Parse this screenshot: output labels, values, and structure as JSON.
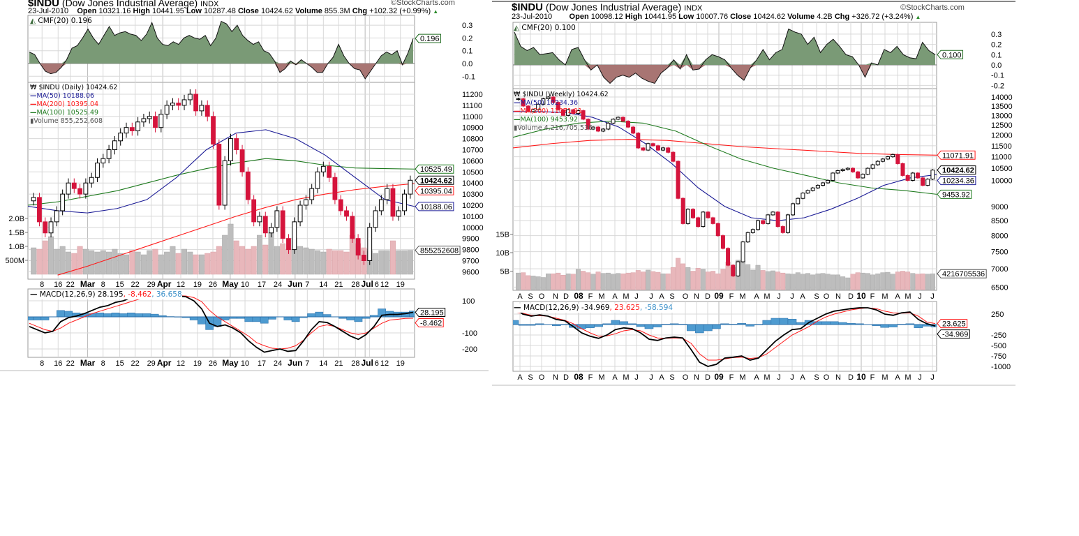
{
  "copyright": "©StockCharts.com",
  "colors": {
    "cmf_pos": "#7a9a76",
    "cmf_neg": "#a87573",
    "up_candle": "#ffffff",
    "down_candle": "#d5143c",
    "volume_up": "#bdbdbd",
    "volume_down": "#e8b7bb",
    "ma50": "#1c1c96",
    "ma200": "#ff1a1a",
    "ma100": "#1e7a1e",
    "macd": "#000000",
    "signal": "#ff1a1a",
    "histogram": "#4e9bd0",
    "grid": "#d8d8d8"
  },
  "charts": [
    {
      "symbol": "$INDU",
      "name": "(Dow Jones Industrial Average)",
      "exchange": "INDX",
      "date": "23-Jul-2010",
      "open_label": "Open",
      "open": "10321.16",
      "high_label": "High",
      "high": "10441.95",
      "low_label": "Low",
      "low": "10287.48",
      "close_label": "Close",
      "close": "10424.62",
      "volume_label": "Volume",
      "volume": "855.3M",
      "chg_label": "Chg",
      "chg": "+102.32 (+0.99%)",
      "cmf_legend": "CMF(20) 0.196",
      "cmf_tag": "0.196",
      "price_legend": "$INDU (Daily) 10424.62",
      "ma50_legend": "MA(50) 10188.06",
      "ma200_legend": "MA(200) 10395.04",
      "ma100_legend": "MA(100) 10525.49",
      "volume_legend": "Volume 855,252,608",
      "macd_legend": "MACD(12,26,9) 28.195",
      "signal_legend": ", -8.462",
      "hist_legend": ", 36.658",
      "tags": {
        "close": "10424.62",
        "ma50": "10188.06",
        "ma200": "10395.04",
        "ma100": "10525.49",
        "volume": "855252608",
        "macd": "28.195",
        "signal": "-8.462"
      },
      "cmf_ticks": [
        "0.3",
        "0.2",
        "0.1",
        "0.0",
        "-0.1"
      ],
      "price_ticks": [
        "11200",
        "11100",
        "11000",
        "10900",
        "10800",
        "10700",
        "10600",
        "10500",
        "10400",
        "10300",
        "10200",
        "10100",
        "10000",
        "9900",
        "9800",
        "9700",
        "9600"
      ],
      "volume_ticks": [
        "2.0B",
        "1.5B",
        "1.0B",
        "500M"
      ],
      "macd_ticks": [
        "100",
        "-100",
        "-200"
      ],
      "x_ticks": [
        [
          "8",
          0
        ],
        [
          "16",
          0
        ],
        [
          "22",
          0
        ],
        [
          "Mar",
          1
        ],
        [
          "8",
          0
        ],
        [
          "15",
          0
        ],
        [
          "22",
          0
        ],
        [
          "29",
          0
        ],
        [
          "Apr",
          1
        ],
        [
          "12",
          0
        ],
        [
          "19",
          0
        ],
        [
          "26",
          0
        ],
        [
          "May",
          1
        ],
        [
          "10",
          0
        ],
        [
          "17",
          0
        ],
        [
          "24",
          0
        ],
        [
          "Jun",
          1
        ],
        [
          "7",
          0
        ],
        [
          "14",
          0
        ],
        [
          "21",
          0
        ],
        [
          "28",
          0
        ],
        [
          "Jul",
          1
        ],
        [
          "6",
          0
        ],
        [
          "12",
          0
        ],
        [
          "19",
          0
        ]
      ],
      "closes": [
        10270,
        10050,
        9950,
        10050,
        10150,
        10300,
        10400,
        10350,
        10300,
        10400,
        10450,
        10580,
        10620,
        10700,
        10780,
        10850,
        10900,
        10870,
        10950,
        10980,
        11000,
        10900,
        11020,
        11100,
        11120,
        11100,
        11150,
        11200,
        11050,
        11100,
        11000,
        10750,
        10200,
        10600,
        10800,
        10700,
        10500,
        10250,
        10050,
        10100,
        9950,
        10000,
        10150,
        9900,
        9800,
        10050,
        10200,
        10250,
        10350,
        10500,
        10550,
        10450,
        10250,
        10150,
        10100,
        9900,
        9750,
        9700,
        10000,
        10150,
        10250,
        10350,
        10100,
        10150,
        10300,
        10424.62
      ],
      "volumes_billions": [
        0.95,
        0.9,
        1.2,
        1.35,
        0.9,
        1.0,
        0.8,
        0.75,
        1.0,
        0.9,
        0.85,
        0.8,
        0.85,
        0.8,
        0.9,
        0.75,
        0.7,
        0.85,
        0.8,
        0.7,
        0.85,
        0.9,
        0.7,
        0.8,
        1.0,
        0.75,
        0.9,
        0.8,
        0.7,
        0.7,
        0.75,
        0.8,
        1.0,
        1.4,
        1.8,
        1.2,
        1.0,
        0.9,
        1.0,
        1.4,
        1.05,
        1.5,
        1.0,
        1.1,
        0.9,
        1.3,
        1.0,
        0.95,
        0.9,
        0.85,
        0.8,
        0.9,
        0.85,
        0.85,
        0.8,
        1.4,
        1.1,
        0.95,
        0.85,
        0.75,
        0.85,
        0.85,
        1.2,
        0.85,
        0.85,
        0.86
      ],
      "ma50": [
        10190,
        10150,
        10130,
        10170,
        10250,
        10450,
        10700,
        10850,
        10880,
        10800,
        10650,
        10450,
        10250,
        10188.06
      ],
      "ma100": [
        10200,
        10230,
        10280,
        10330,
        10400,
        10470,
        10530,
        10580,
        10620,
        10600,
        10560,
        10535,
        10530,
        10525.49
      ],
      "ma200": [
        null,
        9570,
        9650,
        9740,
        9830,
        9920,
        10010,
        10100,
        10180,
        10250,
        10300,
        10340,
        10370,
        10395.04
      ],
      "cmf": [
        0.09,
        0.07,
        0.0,
        -0.06,
        -0.08,
        -0.07,
        -0.03,
        0.03,
        0.12,
        0.14,
        0.2,
        0.27,
        0.2,
        0.15,
        0.22,
        0.29,
        0.22,
        0.24,
        0.25,
        0.23,
        0.22,
        0.18,
        0.23,
        0.32,
        0.2,
        0.15,
        0.14,
        0.17,
        0.15,
        0.2,
        0.22,
        0.2,
        0.19,
        0.22,
        0.14,
        0.2,
        0.33,
        0.31,
        0.25,
        0.3,
        0.22,
        0.18,
        0.15,
        0.17,
        0.1,
        0.08,
        0.02,
        -0.07,
        -0.04,
        0.02,
        -0.01,
        0.03,
        0.0,
        -0.03,
        -0.07,
        -0.07,
        0.0,
        0.05,
        0.15,
        0.06,
        0.0,
        -0.04,
        -0.05,
        -0.12,
        -0.06,
        0.0,
        0.06,
        0.09,
        0.07,
        0.1,
        -0.01,
        0.08,
        0.196
      ],
      "macd": [
        -60,
        -80,
        -100,
        -90,
        -30,
        -5,
        5,
        20,
        40,
        60,
        70,
        90,
        100,
        120,
        130,
        140,
        145,
        140,
        135,
        130,
        125,
        100,
        50,
        -40,
        -60,
        -50,
        -70,
        -100,
        -150,
        -190,
        -220,
        -210,
        -200,
        -215,
        -210,
        -150,
        -80,
        -30,
        -35,
        -60,
        -90,
        -120,
        -140,
        -110,
        -60,
        10,
        15,
        15,
        20,
        28.195
      ],
      "signal": [
        -40,
        -60,
        -80,
        -90,
        -70,
        -40,
        -20,
        0,
        20,
        35,
        50,
        65,
        80,
        95,
        110,
        120,
        128,
        132,
        133,
        132,
        130,
        120,
        95,
        40,
        0,
        -30,
        -60,
        -90,
        -120,
        -160,
        -180,
        -195,
        -200,
        -195,
        -180,
        -145,
        -100,
        -60,
        -50,
        -60,
        -80,
        -100,
        -110,
        -100,
        -70,
        -40,
        -20,
        -15,
        -10,
        -8.462
      ],
      "scale": "linear"
    },
    {
      "symbol": "$INDU",
      "name": "(Dow Jones Industrial Average)",
      "exchange": "INDX",
      "date": "23-Jul-2010",
      "open_label": "Open",
      "open": "10098.12",
      "high_label": "High",
      "high": "10441.95",
      "low_label": "Low",
      "low": "10007.76",
      "close_label": "Close",
      "close": "10424.62",
      "volume_label": "Volume",
      "volume": "4.2B",
      "chg_label": "Chg",
      "chg": "+326.72 (+3.24%)",
      "cmf_legend": "CMF(20) 0.100",
      "cmf_tag": "0.100",
      "price_legend": "$INDU (Weekly) 10424.62",
      "ma50_legend": "MA(50) 10234.36",
      "ma200_legend": "MA(200) 11071.91",
      "ma100_legend": "MA(100) 9453.92",
      "volume_legend": "Volume 4,216,705,536",
      "macd_legend": "MACD(12,26,9) -34.969",
      "signal_legend": ", 23.625",
      "hist_legend": ", -58.594",
      "tags": {
        "close": "10424.62",
        "ma50": "10234.36",
        "ma200": "11071.91",
        "ma100": "9453.92",
        "volume": "4216705536",
        "macd": "-34.969",
        "signal": "23.625"
      },
      "cmf_ticks": [
        "0.3",
        "0.2",
        "0.1",
        "0.0",
        "-0.1",
        "-0.2"
      ],
      "price_ticks": [
        "14000",
        "13500",
        "13000",
        "12500",
        "12000",
        "11500",
        "11000",
        "10500",
        "10000",
        "9000",
        "8500",
        "8000",
        "7500",
        "7000",
        "6500"
      ],
      "volume_ticks": [
        "15B",
        "10B",
        "5B"
      ],
      "macd_ticks": [
        "250",
        "-250",
        "-500",
        "-750",
        "-1000"
      ],
      "x_ticks": [
        [
          "A",
          0
        ],
        [
          "S",
          0
        ],
        [
          "O",
          0
        ],
        [
          "N",
          0
        ],
        [
          "D",
          0
        ],
        [
          "08",
          1
        ],
        [
          "F",
          0
        ],
        [
          "M",
          0
        ],
        [
          "A",
          0
        ],
        [
          "M",
          0
        ],
        [
          "J",
          0
        ],
        [
          "J",
          0
        ],
        [
          "A",
          0
        ],
        [
          "S",
          0
        ],
        [
          "O",
          0
        ],
        [
          "N",
          0
        ],
        [
          "D",
          0
        ],
        [
          "09",
          1
        ],
        [
          "F",
          0
        ],
        [
          "M",
          0
        ],
        [
          "A",
          0
        ],
        [
          "M",
          0
        ],
        [
          "J",
          0
        ],
        [
          "J",
          0
        ],
        [
          "A",
          0
        ],
        [
          "S",
          0
        ],
        [
          "O",
          0
        ],
        [
          "N",
          0
        ],
        [
          "D",
          0
        ],
        [
          "10",
          1
        ],
        [
          "F",
          0
        ],
        [
          "M",
          0
        ],
        [
          "A",
          0
        ],
        [
          "M",
          0
        ],
        [
          "J",
          0
        ],
        [
          "J",
          0
        ]
      ],
      "closes": [
        13900,
        13500,
        13200,
        13300,
        13600,
        13900,
        14000,
        13700,
        13300,
        13000,
        13300,
        13100,
        13250,
        12800,
        12300,
        12400,
        12200,
        12300,
        12600,
        12800,
        12900,
        12700,
        12400,
        12100,
        11400,
        11300,
        11600,
        11500,
        11300,
        11400,
        11200,
        10800,
        9300,
        8400,
        8900,
        8600,
        8300,
        8800,
        8600,
        8400,
        8000,
        7600,
        7100,
        6800,
        7200,
        7800,
        8100,
        8200,
        8500,
        8400,
        8700,
        8800,
        8300,
        8100,
        8700,
        9100,
        9300,
        9500,
        9600,
        9700,
        9800,
        9900,
        10000,
        10300,
        10400,
        10450,
        10500,
        10350,
        10100,
        10250,
        10500,
        10650,
        10800,
        10900,
        11000,
        11100,
        10700,
        10200,
        10000,
        10300,
        10100,
        9800,
        10050,
        10424.62
      ],
      "volumes_billions": [
        4.5,
        4.6,
        3.8,
        3.7,
        3.5,
        3.3,
        4.3,
        4.3,
        4.5,
        3.9,
        4.3,
        4.2,
        5.5,
        5.0,
        4.6,
        4.2,
        4.8,
        4.4,
        4.5,
        4.2,
        4.4,
        4.3,
        4.5,
        4.6,
        5.2,
        4.8,
        5.3,
        4.9,
        4.7,
        4.3,
        4.3,
        6.0,
        8.5,
        7.0,
        6.0,
        5.0,
        5.8,
        5.5,
        4.8,
        5.0,
        4.3,
        5.5,
        7.5,
        6.0,
        8.0,
        7.8,
        6.8,
        5.3,
        6.6,
        5.2,
        4.9,
        5.1,
        4.8,
        4.5,
        4.3,
        4.2,
        4.6,
        4.2,
        4.4,
        4.0,
        4.3,
        4.4,
        4.2,
        4.0,
        4.0,
        3.5,
        3.2,
        4.2,
        4.6,
        4.5,
        4.4,
        4.0,
        4.3,
        4.6,
        4.7,
        4.2,
        4.8,
        5.0,
        4.8,
        4.4,
        4.2,
        4.3,
        4.2,
        4.3
      ],
      "ma50": [
        13200,
        13200,
        13150,
        12900,
        12400,
        11600,
        10700,
        9700,
        9000,
        8600,
        8500,
        8600,
        8900,
        9300,
        9800,
        10100,
        10234.36
      ],
      "ma100": [
        11900,
        12300,
        12600,
        12700,
        12600,
        12200,
        11500,
        10900,
        10500,
        10200,
        9900,
        9700,
        9600,
        9453.92
      ],
      "ma200": [
        11400,
        11600,
        11750,
        11800,
        11750,
        11600,
        11450,
        11350,
        11250,
        11150,
        11100,
        11071.91
      ],
      "cmf": [
        0.32,
        0.18,
        0.14,
        0.17,
        0.1,
        0.11,
        0.12,
        0.05,
        0.0,
        0.15,
        0.17,
        0.05,
        -0.05,
        0.0,
        -0.12,
        -0.18,
        -0.12,
        -0.1,
        -0.12,
        -0.08,
        -0.13,
        -0.16,
        -0.18,
        -0.08,
        -0.03,
        0.05,
        -0.04,
        0.1,
        -0.05,
        -0.04,
        0.05,
        0.1,
        0.08,
        0.05,
        -0.03,
        -0.1,
        -0.15,
        -0.03,
        0.05,
        0.15,
        0.05,
        0.12,
        0.15,
        0.35,
        0.32,
        0.3,
        0.2,
        0.27,
        0.12,
        0.2,
        0.25,
        0.18,
        0.1,
        0.08,
        0.0,
        -0.12,
        0.02,
        0.0,
        0.15,
        0.12,
        0.18,
        0.1,
        0.07,
        0.06,
        0.22,
        0.14,
        0.1
      ],
      "macd": [
        400,
        250,
        200,
        230,
        200,
        120,
        90,
        -50,
        -200,
        -280,
        -330,
        -250,
        -120,
        -80,
        -100,
        -200,
        -350,
        -380,
        -320,
        -300,
        -320,
        -600,
        -900,
        -1000,
        -950,
        -800,
        -780,
        -750,
        -850,
        -800,
        -600,
        -400,
        -250,
        -120,
        -100,
        50,
        150,
        250,
        320,
        350,
        380,
        400,
        400,
        350,
        250,
        220,
        280,
        300,
        120,
        20,
        -34.969
      ],
      "signal": [
        300,
        270,
        220,
        210,
        200,
        150,
        100,
        20,
        -100,
        -200,
        -280,
        -270,
        -220,
        -150,
        -120,
        -150,
        -250,
        -320,
        -330,
        -320,
        -330,
        -450,
        -700,
        -850,
        -850,
        -820,
        -790,
        -780,
        -810,
        -790,
        -700,
        -550,
        -400,
        -250,
        -150,
        -50,
        80,
        180,
        250,
        300,
        350,
        380,
        400,
        380,
        320,
        280,
        270,
        280,
        200,
        60,
        23.625
      ],
      "scale": "log"
    }
  ]
}
